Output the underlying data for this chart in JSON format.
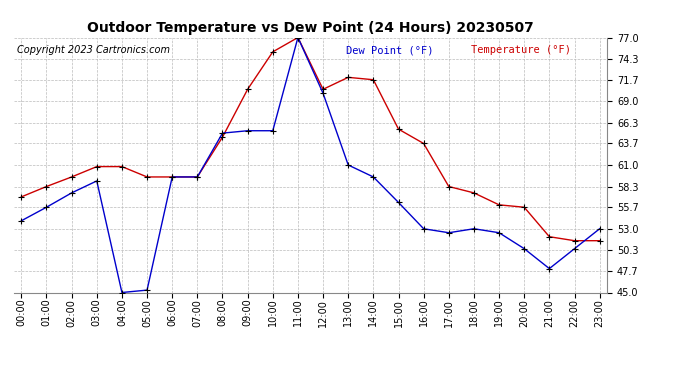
{
  "title": "Outdoor Temperature vs Dew Point (24 Hours) 20230507",
  "copyright": "Copyright 2023 Cartronics.com",
  "legend_dew": "Dew Point (°F)",
  "legend_temp": "Temperature (°F)",
  "hours": [
    0,
    1,
    2,
    3,
    4,
    5,
    6,
    7,
    8,
    9,
    10,
    11,
    12,
    13,
    14,
    15,
    16,
    17,
    18,
    19,
    20,
    21,
    22,
    23
  ],
  "temperature": [
    57.0,
    58.3,
    59.5,
    60.8,
    60.8,
    59.5,
    59.5,
    59.5,
    64.5,
    70.5,
    75.2,
    77.0,
    70.5,
    72.0,
    71.7,
    65.5,
    63.7,
    58.3,
    57.5,
    56.0,
    55.7,
    52.0,
    51.5,
    51.5
  ],
  "dew_point": [
    54.0,
    55.7,
    57.5,
    59.0,
    45.0,
    45.3,
    59.5,
    59.5,
    65.0,
    65.3,
    65.3,
    77.0,
    70.0,
    61.0,
    59.5,
    56.3,
    53.0,
    52.5,
    53.0,
    52.5,
    50.5,
    48.0,
    50.5,
    53.0
  ],
  "ylim": [
    45.0,
    77.0
  ],
  "yticks": [
    45.0,
    47.7,
    50.3,
    53.0,
    55.7,
    58.3,
    61.0,
    63.7,
    66.3,
    69.0,
    71.7,
    74.3,
    77.0
  ],
  "bg_color": "#ffffff",
  "grid_color": "#bbbbbb",
  "temp_color": "#cc0000",
  "dew_color": "#0000cc",
  "marker_color": "#000000",
  "title_fontsize": 10,
  "label_fontsize": 7,
  "copyright_fontsize": 7,
  "legend_fontsize": 7.5,
  "tick_label_fontsize": 7
}
